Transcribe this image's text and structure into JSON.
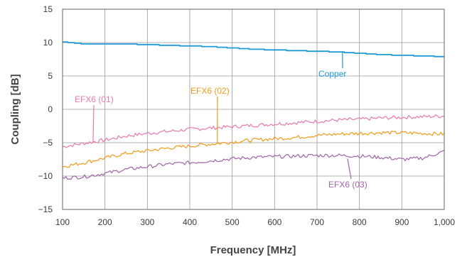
{
  "chart_data": {
    "type": "line",
    "title": "",
    "xlabel": "Frequency [MHz]",
    "ylabel": "Coupling [dB]",
    "xlim": [
      100,
      1000
    ],
    "ylim": [
      -15,
      15
    ],
    "x_ticks": [
      100,
      200,
      300,
      400,
      500,
      600,
      700,
      800,
      900,
      1000
    ],
    "x_tick_labels": [
      "100",
      "200",
      "300",
      "400",
      "500",
      "600",
      "700",
      "800",
      "900",
      "1,000"
    ],
    "y_ticks": [
      15,
      10,
      5,
      0,
      -5,
      -10,
      -15
    ],
    "y_tick_labels": [
      "15",
      "10",
      "5",
      "0",
      "−5",
      "−10",
      "−15"
    ],
    "grid": true,
    "x": [
      100,
      150,
      200,
      250,
      300,
      350,
      400,
      450,
      500,
      550,
      600,
      650,
      700,
      750,
      800,
      850,
      900,
      950,
      1000
    ],
    "series": [
      {
        "name": "Copper",
        "color": "#1e9ad6",
        "values": [
          10.1,
          9.8,
          9.8,
          9.8,
          9.7,
          9.6,
          9.5,
          9.4,
          9.2,
          9.0,
          8.9,
          8.8,
          8.7,
          8.6,
          8.4,
          8.2,
          8.1,
          8.0,
          7.9
        ],
        "label_at": [
          760,
          8.6
        ]
      },
      {
        "name": "EFX6 (01)",
        "color": "#e87aa8",
        "values": [
          -5.6,
          -5.1,
          -4.6,
          -4.0,
          -3.6,
          -3.3,
          -3.0,
          -2.8,
          -2.6,
          -2.4,
          -2.2,
          -2.0,
          -1.8,
          -1.6,
          -1.5,
          -1.3,
          -1.2,
          -1.1,
          -1.0
        ],
        "label_at": [
          172,
          -4.9
        ]
      },
      {
        "name": "EFX6 (02)",
        "color": "#f29a18",
        "values": [
          -8.6,
          -8.0,
          -7.3,
          -6.6,
          -6.2,
          -5.8,
          -5.5,
          -5.2,
          -4.9,
          -4.6,
          -4.4,
          -4.2,
          -3.9,
          -3.7,
          -3.6,
          -3.5,
          -3.5,
          -3.6,
          -3.7
        ],
        "label_at": [
          465,
          -5.1
        ]
      },
      {
        "name": "EFX6 (03)",
        "color": "#a064a8",
        "values": [
          -10.3,
          -10.1,
          -9.6,
          -9.0,
          -8.6,
          -8.2,
          -8.0,
          -7.7,
          -7.4,
          -7.2,
          -7.1,
          -7.0,
          -6.9,
          -6.9,
          -7.0,
          -7.2,
          -7.5,
          -7.3,
          -6.3
        ],
        "label_at": [
          772,
          -7.4
        ]
      }
    ]
  },
  "labels": {
    "copper": "Copper",
    "efx6_01": "EFX6 (01)",
    "efx6_02": "EFX6 (02)",
    "efx6_03": "EFX6 (03)"
  }
}
